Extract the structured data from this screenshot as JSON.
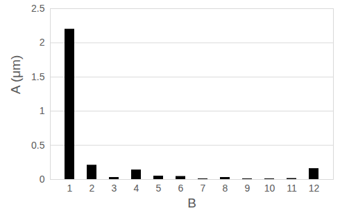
{
  "chart_data": {
    "type": "bar",
    "categories": [
      "1",
      "2",
      "3",
      "4",
      "5",
      "6",
      "7",
      "8",
      "9",
      "10",
      "11",
      "12"
    ],
    "values": [
      2.2,
      0.21,
      0.03,
      0.14,
      0.05,
      0.045,
      0.01,
      0.03,
      0.01,
      0.01,
      0.015,
      0.16
    ],
    "color": "#000000",
    "x_label": "B",
    "y_label": "A (μm)",
    "ylim": [
      0,
      2.5
    ],
    "yticks": [
      0,
      0.5,
      1,
      1.5,
      2,
      2.5
    ],
    "grid": true
  }
}
